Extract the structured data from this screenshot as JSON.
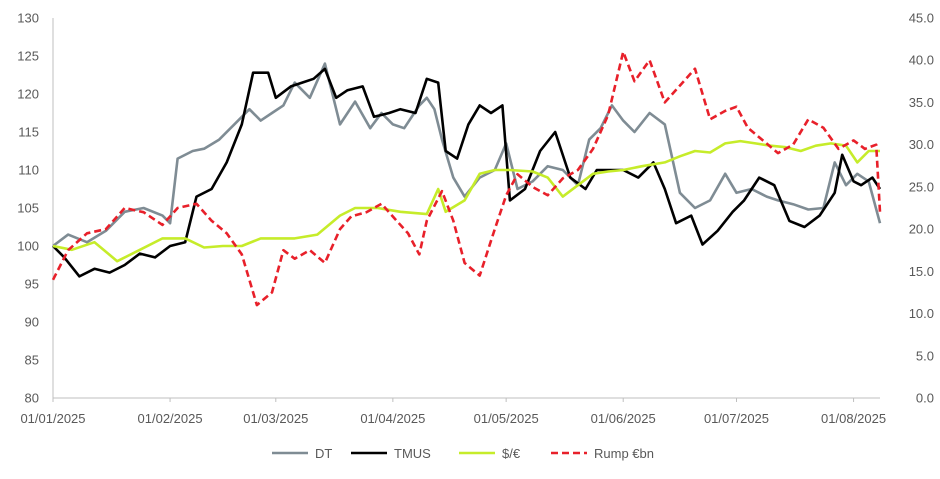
{
  "chart_data": {
    "type": "line",
    "title": "",
    "xlabel": "",
    "ylabel": "",
    "x_ticks": [
      "01/01/2025",
      "01/02/2025",
      "01/03/2025",
      "01/04/2025",
      "01/05/2025",
      "01/06/2025",
      "01/07/2025",
      "01/08/2025"
    ],
    "ylim": [
      80,
      130
    ],
    "y_ticks": [
      "80",
      "85",
      "90",
      "95",
      "100",
      "105",
      "110",
      "115",
      "120",
      "125",
      "130"
    ],
    "y2lim": [
      0,
      45
    ],
    "y2_ticks": [
      "0.0",
      "5.0",
      "10.0",
      "15.0",
      "20.0",
      "25.0",
      "30.0",
      "35.0",
      "40.0",
      "45.0"
    ],
    "grid": false,
    "legend_position": "bottom",
    "series": [
      {
        "name": "DT",
        "axis": "left",
        "color": "#7f8c94",
        "dash": "solid",
        "points": [
          [
            "2025-01-01",
            100
          ],
          [
            "2025-01-05",
            101.5
          ],
          [
            "2025-01-10",
            100.5
          ],
          [
            "2025-01-15",
            102
          ],
          [
            "2025-01-20",
            104.5
          ],
          [
            "2025-01-25",
            105
          ],
          [
            "2025-01-30",
            104
          ],
          [
            "2025-02-01",
            103
          ],
          [
            "2025-02-03",
            111.5
          ],
          [
            "2025-02-07",
            112.5
          ],
          [
            "2025-02-10",
            112.8
          ],
          [
            "2025-02-14",
            114
          ],
          [
            "2025-02-18",
            116
          ],
          [
            "2025-02-22",
            118
          ],
          [
            "2025-02-25",
            116.5
          ],
          [
            "2025-02-28",
            117.5
          ],
          [
            "2025-03-03",
            118.5
          ],
          [
            "2025-03-06",
            121.5
          ],
          [
            "2025-03-10",
            119.5
          ],
          [
            "2025-03-14",
            124
          ],
          [
            "2025-03-18",
            116
          ],
          [
            "2025-03-22",
            119
          ],
          [
            "2025-03-26",
            115.5
          ],
          [
            "2025-03-29",
            117.5
          ],
          [
            "2025-04-01",
            116
          ],
          [
            "2025-04-04",
            115.5
          ],
          [
            "2025-04-08",
            118.5
          ],
          [
            "2025-04-10",
            119.5
          ],
          [
            "2025-04-12",
            118
          ],
          [
            "2025-04-14",
            114
          ],
          [
            "2025-04-17",
            109
          ],
          [
            "2025-04-20",
            106.5
          ],
          [
            "2025-04-24",
            109
          ],
          [
            "2025-04-28",
            110
          ],
          [
            "2025-05-01",
            113.5
          ],
          [
            "2025-05-04",
            107.5
          ],
          [
            "2025-05-08",
            108.5
          ],
          [
            "2025-05-12",
            110.5
          ],
          [
            "2025-05-16",
            110
          ],
          [
            "2025-05-20",
            108
          ],
          [
            "2025-05-23",
            114
          ],
          [
            "2025-05-26",
            115.5
          ],
          [
            "2025-05-29",
            118.5
          ],
          [
            "2025-06-01",
            116.5
          ],
          [
            "2025-06-04",
            115
          ],
          [
            "2025-06-08",
            117.5
          ],
          [
            "2025-06-12",
            116
          ],
          [
            "2025-06-16",
            107
          ],
          [
            "2025-06-20",
            105
          ],
          [
            "2025-06-24",
            106
          ],
          [
            "2025-06-28",
            109.5
          ],
          [
            "2025-07-01",
            107
          ],
          [
            "2025-07-05",
            107.5
          ],
          [
            "2025-07-09",
            106.5
          ],
          [
            "2025-07-12",
            106
          ],
          [
            "2025-07-16",
            105.5
          ],
          [
            "2025-07-20",
            104.8
          ],
          [
            "2025-07-24",
            105
          ],
          [
            "2025-07-27",
            111
          ],
          [
            "2025-07-30",
            108
          ],
          [
            "2025-08-02",
            109.5
          ],
          [
            "2025-08-05",
            108.5
          ],
          [
            "2025-08-08",
            103
          ]
        ]
      },
      {
        "name": "TMUS",
        "axis": "left",
        "color": "#000000",
        "dash": "solid",
        "points": [
          [
            "2025-01-01",
            100
          ],
          [
            "2025-01-04",
            98.5
          ],
          [
            "2025-01-08",
            96
          ],
          [
            "2025-01-12",
            97
          ],
          [
            "2025-01-16",
            96.5
          ],
          [
            "2025-01-20",
            97.5
          ],
          [
            "2025-01-24",
            99
          ],
          [
            "2025-01-28",
            98.5
          ],
          [
            "2025-02-01",
            100
          ],
          [
            "2025-02-05",
            100.5
          ],
          [
            "2025-02-08",
            106.5
          ],
          [
            "2025-02-12",
            107.5
          ],
          [
            "2025-02-16",
            111
          ],
          [
            "2025-02-20",
            116
          ],
          [
            "2025-02-23",
            122.8
          ],
          [
            "2025-02-27",
            122.8
          ],
          [
            "2025-03-01",
            119.5
          ],
          [
            "2025-03-05",
            121
          ],
          [
            "2025-03-08",
            121.5
          ],
          [
            "2025-03-11",
            122
          ],
          [
            "2025-03-14",
            123.3
          ],
          [
            "2025-03-17",
            119.5
          ],
          [
            "2025-03-20",
            120.5
          ],
          [
            "2025-03-24",
            121
          ],
          [
            "2025-03-27",
            117
          ],
          [
            "2025-03-31",
            117.5
          ],
          [
            "2025-04-03",
            118
          ],
          [
            "2025-04-07",
            117.5
          ],
          [
            "2025-04-10",
            122
          ],
          [
            "2025-04-13",
            121.5
          ],
          [
            "2025-04-15",
            112.5
          ],
          [
            "2025-04-18",
            111.5
          ],
          [
            "2025-04-21",
            116
          ],
          [
            "2025-04-24",
            118.5
          ],
          [
            "2025-04-27",
            117.5
          ],
          [
            "2025-04-30",
            118.5
          ],
          [
            "2025-05-02",
            106
          ],
          [
            "2025-05-06",
            107.5
          ],
          [
            "2025-05-10",
            112.5
          ],
          [
            "2025-05-14",
            115
          ],
          [
            "2025-05-18",
            109
          ],
          [
            "2025-05-22",
            107.5
          ],
          [
            "2025-05-25",
            110
          ],
          [
            "2025-05-28",
            110
          ],
          [
            "2025-06-01",
            110
          ],
          [
            "2025-06-05",
            109
          ],
          [
            "2025-06-09",
            111
          ],
          [
            "2025-06-12",
            107.5
          ],
          [
            "2025-06-15",
            103
          ],
          [
            "2025-06-19",
            104
          ],
          [
            "2025-06-22",
            100.2
          ],
          [
            "2025-06-26",
            102
          ],
          [
            "2025-06-30",
            104.5
          ],
          [
            "2025-07-03",
            106
          ],
          [
            "2025-07-07",
            109
          ],
          [
            "2025-07-11",
            108
          ],
          [
            "2025-07-15",
            103.3
          ],
          [
            "2025-07-19",
            102.5
          ],
          [
            "2025-07-23",
            104
          ],
          [
            "2025-07-27",
            107
          ],
          [
            "2025-07-29",
            112
          ],
          [
            "2025-08-01",
            108.5
          ],
          [
            "2025-08-03",
            108
          ],
          [
            "2025-08-06",
            109
          ],
          [
            "2025-08-08",
            107.5
          ]
        ]
      },
      {
        "name": "$/€",
        "axis": "left",
        "color": "#c6ec2a",
        "dash": "solid",
        "points": [
          [
            "2025-01-01",
            100
          ],
          [
            "2025-01-06",
            99.5
          ],
          [
            "2025-01-12",
            100.5
          ],
          [
            "2025-01-18",
            98
          ],
          [
            "2025-01-24",
            99.5
          ],
          [
            "2025-01-30",
            101
          ],
          [
            "2025-02-05",
            101
          ],
          [
            "2025-02-10",
            99.8
          ],
          [
            "2025-02-15",
            100
          ],
          [
            "2025-02-20",
            100
          ],
          [
            "2025-02-25",
            101
          ],
          [
            "2025-03-01",
            101
          ],
          [
            "2025-03-06",
            101
          ],
          [
            "2025-03-12",
            101.5
          ],
          [
            "2025-03-18",
            104
          ],
          [
            "2025-03-22",
            105
          ],
          [
            "2025-03-28",
            105
          ],
          [
            "2025-04-03",
            104.5
          ],
          [
            "2025-04-10",
            104.2
          ],
          [
            "2025-04-13",
            107.5
          ],
          [
            "2025-04-15",
            104.5
          ],
          [
            "2025-04-20",
            106
          ],
          [
            "2025-04-24",
            109.5
          ],
          [
            "2025-04-28",
            110
          ],
          [
            "2025-05-02",
            110
          ],
          [
            "2025-05-08",
            109.8
          ],
          [
            "2025-05-12",
            109
          ],
          [
            "2025-05-16",
            106.5
          ],
          [
            "2025-05-20",
            108
          ],
          [
            "2025-05-24",
            109.5
          ],
          [
            "2025-05-28",
            109.8
          ],
          [
            "2025-06-01",
            110
          ],
          [
            "2025-06-06",
            110.5
          ],
          [
            "2025-06-12",
            111
          ],
          [
            "2025-06-16",
            111.8
          ],
          [
            "2025-06-20",
            112.5
          ],
          [
            "2025-06-24",
            112.3
          ],
          [
            "2025-06-28",
            113.5
          ],
          [
            "2025-07-02",
            113.8
          ],
          [
            "2025-07-06",
            113.5
          ],
          [
            "2025-07-10",
            113.2
          ],
          [
            "2025-07-14",
            113.0
          ],
          [
            "2025-07-18",
            112.5
          ],
          [
            "2025-07-22",
            113.2
          ],
          [
            "2025-07-26",
            113.5
          ],
          [
            "2025-07-30",
            113.2
          ],
          [
            "2025-08-02",
            111
          ],
          [
            "2025-08-05",
            112.5
          ],
          [
            "2025-08-08",
            112.5
          ]
        ]
      },
      {
        "name": "Rump €bn",
        "axis": "right",
        "color": "#e8202a",
        "dash": "dashed",
        "points": [
          [
            "2025-01-01",
            14
          ],
          [
            "2025-01-05",
            17.5
          ],
          [
            "2025-01-10",
            19.5
          ],
          [
            "2025-01-15",
            20
          ],
          [
            "2025-01-20",
            22.5
          ],
          [
            "2025-01-25",
            22
          ],
          [
            "2025-01-30",
            20.5
          ],
          [
            "2025-02-03",
            22.5
          ],
          [
            "2025-02-08",
            23
          ],
          [
            "2025-02-12",
            21
          ],
          [
            "2025-02-16",
            19.5
          ],
          [
            "2025-02-20",
            17
          ],
          [
            "2025-02-24",
            11
          ],
          [
            "2025-02-28",
            12.5
          ],
          [
            "2025-03-03",
            17.5
          ],
          [
            "2025-03-06",
            16.5
          ],
          [
            "2025-03-10",
            17.5
          ],
          [
            "2025-03-14",
            16
          ],
          [
            "2025-03-18",
            20
          ],
          [
            "2025-03-21",
            21.5
          ],
          [
            "2025-03-25",
            22
          ],
          [
            "2025-03-29",
            23
          ],
          [
            "2025-04-02",
            21
          ],
          [
            "2025-04-05",
            19.5
          ],
          [
            "2025-04-08",
            17
          ],
          [
            "2025-04-10",
            21
          ],
          [
            "2025-04-14",
            24.5
          ],
          [
            "2025-04-17",
            21
          ],
          [
            "2025-04-20",
            16
          ],
          [
            "2025-04-24",
            14.5
          ],
          [
            "2025-04-28",
            20
          ],
          [
            "2025-05-01",
            24
          ],
          [
            "2025-05-04",
            26.5
          ],
          [
            "2025-05-08",
            25
          ],
          [
            "2025-05-12",
            24
          ],
          [
            "2025-05-16",
            26
          ],
          [
            "2025-05-20",
            27
          ],
          [
            "2025-05-24",
            29.5
          ],
          [
            "2025-05-28",
            33.5
          ],
          [
            "2025-06-01",
            41
          ],
          [
            "2025-06-04",
            37.5
          ],
          [
            "2025-06-08",
            40
          ],
          [
            "2025-06-12",
            35
          ],
          [
            "2025-06-16",
            37
          ],
          [
            "2025-06-20",
            39
          ],
          [
            "2025-06-24",
            33
          ],
          [
            "2025-06-28",
            34
          ],
          [
            "2025-07-01",
            34.5
          ],
          [
            "2025-07-04",
            32
          ],
          [
            "2025-07-08",
            30.5
          ],
          [
            "2025-07-12",
            29
          ],
          [
            "2025-07-16",
            30
          ],
          [
            "2025-07-20",
            33
          ],
          [
            "2025-07-24",
            32
          ],
          [
            "2025-07-28",
            29.5
          ],
          [
            "2025-08-01",
            30.5
          ],
          [
            "2025-08-04",
            29.5
          ],
          [
            "2025-08-07",
            30
          ],
          [
            "2025-08-08",
            22
          ]
        ]
      }
    ]
  }
}
